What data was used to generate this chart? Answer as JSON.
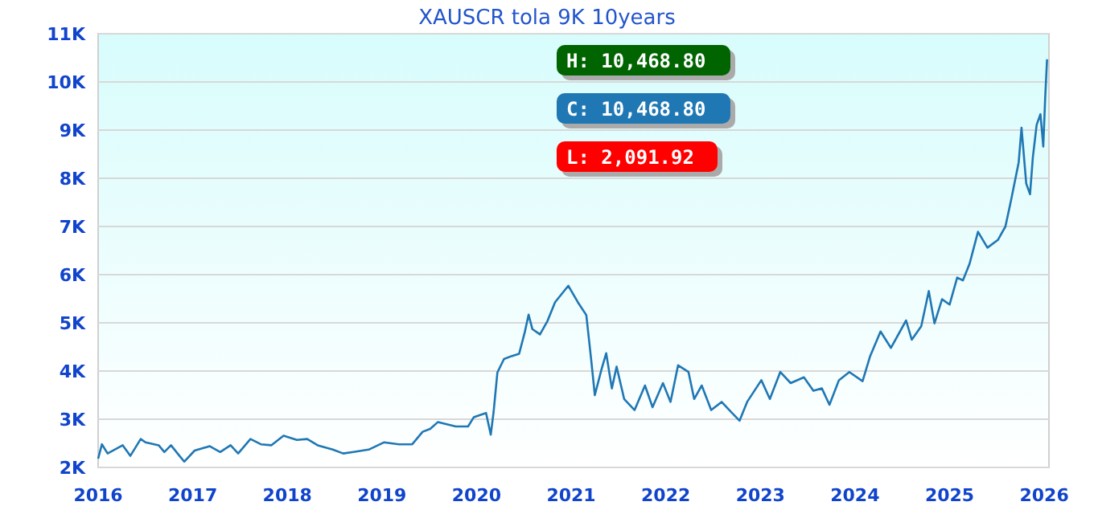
{
  "chart_data": {
    "type": "line",
    "title": "XAUSCR tola 9K 10years",
    "x": [
      2016.0,
      2016.04,
      2016.1,
      2016.26,
      2016.34,
      2016.45,
      2016.5,
      2016.64,
      2016.7,
      2016.77,
      2016.86,
      2016.91,
      2017.02,
      2017.18,
      2017.29,
      2017.4,
      2017.48,
      2017.61,
      2017.72,
      2017.83,
      2017.96,
      2018.1,
      2018.21,
      2018.32,
      2018.48,
      2018.59,
      2018.7,
      2018.86,
      2019.02,
      2019.18,
      2019.32,
      2019.43,
      2019.51,
      2019.59,
      2019.78,
      2019.91,
      2019.97,
      2020.1,
      2020.15,
      2020.18,
      2020.22,
      2020.29,
      2020.37,
      2020.45,
      2020.51,
      2020.55,
      2020.59,
      2020.67,
      2020.75,
      2020.83,
      2020.97,
      2021.07,
      2021.16,
      2021.21,
      2021.25,
      2021.32,
      2021.37,
      2021.43,
      2021.48,
      2021.56,
      2021.67,
      2021.78,
      2021.86,
      2021.97,
      2022.05,
      2022.13,
      2022.24,
      2022.3,
      2022.38,
      2022.48,
      2022.59,
      2022.7,
      2022.78,
      2022.86,
      2023.01,
      2023.1,
      2023.21,
      2023.32,
      2023.46,
      2023.56,
      2023.65,
      2023.73,
      2023.83,
      2023.94,
      2024.08,
      2024.16,
      2024.27,
      2024.38,
      2024.54,
      2024.6,
      2024.7,
      2024.78,
      2024.84,
      2024.92,
      2025.0,
      2025.08,
      2025.14,
      2025.21,
      2025.3,
      2025.4,
      2025.51,
      2025.59,
      2025.65,
      2025.73,
      2025.76,
      2025.81,
      2025.85,
      2025.88,
      2025.92,
      2025.96,
      2025.99,
      2026.01,
      2026.03
    ],
    "series": [
      {
        "color": "#1f77b4",
        "values": [
          2180,
          2480,
          2290,
          2460,
          2240,
          2590,
          2520,
          2460,
          2320,
          2460,
          2240,
          2120,
          2350,
          2440,
          2320,
          2460,
          2290,
          2590,
          2480,
          2460,
          2660,
          2570,
          2590,
          2460,
          2370,
          2290,
          2320,
          2370,
          2520,
          2480,
          2480,
          2740,
          2800,
          2940,
          2850,
          2850,
          3040,
          3130,
          2680,
          3150,
          3970,
          4250,
          4310,
          4360,
          4810,
          5170,
          4870,
          4760,
          5040,
          5430,
          5770,
          5430,
          5160,
          4260,
          3500,
          4030,
          4370,
          3640,
          4090,
          3420,
          3190,
          3700,
          3250,
          3750,
          3360,
          4120,
          3980,
          3420,
          3700,
          3190,
          3360,
          3130,
          2970,
          3360,
          3810,
          3420,
          3980,
          3750,
          3870,
          3590,
          3640,
          3300,
          3810,
          3980,
          3790,
          4310,
          4820,
          4480,
          5050,
          4650,
          4930,
          5660,
          4990,
          5490,
          5380,
          5940,
          5880,
          6220,
          6890,
          6560,
          6720,
          7000,
          7550,
          8330,
          9050,
          7890,
          7670,
          8440,
          9110,
          9330,
          8660,
          9660,
          10468.8
        ]
      }
    ],
    "xlim": [
      2016,
      2026.05
    ],
    "xticks": [
      2016,
      2017,
      2018,
      2019,
      2020,
      2021,
      2022,
      2023,
      2024,
      2025,
      2026
    ],
    "ylim": [
      2000,
      11000
    ],
    "yticks": [
      {
        "value": 2000,
        "label": "2K"
      },
      {
        "value": 3000,
        "label": "3K"
      },
      {
        "value": 4000,
        "label": "4K"
      },
      {
        "value": 5000,
        "label": "5K"
      },
      {
        "value": 6000,
        "label": "6K"
      },
      {
        "value": 7000,
        "label": "7K"
      },
      {
        "value": 8000,
        "label": "8K"
      },
      {
        "value": 9000,
        "label": "9K"
      },
      {
        "value": 10000,
        "label": "10K"
      },
      {
        "value": 11000,
        "label": "11K"
      }
    ],
    "grid": "y",
    "marker": "none",
    "line_style": "solid",
    "annotations": [
      "H: 10,468.80",
      "C: 10,468.80",
      "L: 2,091.92"
    ]
  }
}
